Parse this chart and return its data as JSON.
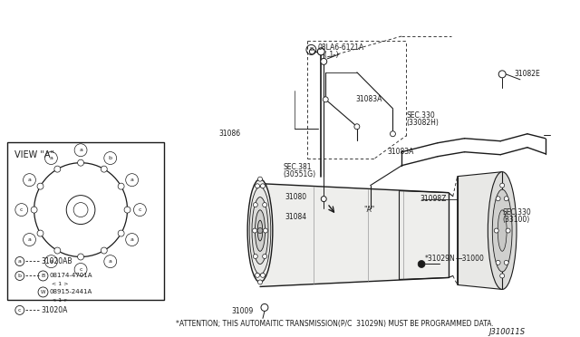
{
  "bg_color": "#ffffff",
  "line_color": "#1a1a1a",
  "diagram_id": "J310011S",
  "attention_text": "*ATTENTION; THIS AUTOMAITIC TRANSMISSION(P/C  31029N) MUST BE PROGRAMMED DATA.",
  "view_a_label": "VIEW \"A\"",
  "font_size_label": 5.5,
  "font_size_attention": 5.5,
  "font_size_diagram_id": 6.0,
  "legend": [
    {
      "sym": "a",
      "line1": "31020AB",
      "line2": null
    },
    {
      "sym": "b",
      "line1": "B08174-4701A",
      "line2": "W08915-2441A"
    },
    {
      "sym": "c",
      "line1": "31020A",
      "line2": null
    }
  ]
}
